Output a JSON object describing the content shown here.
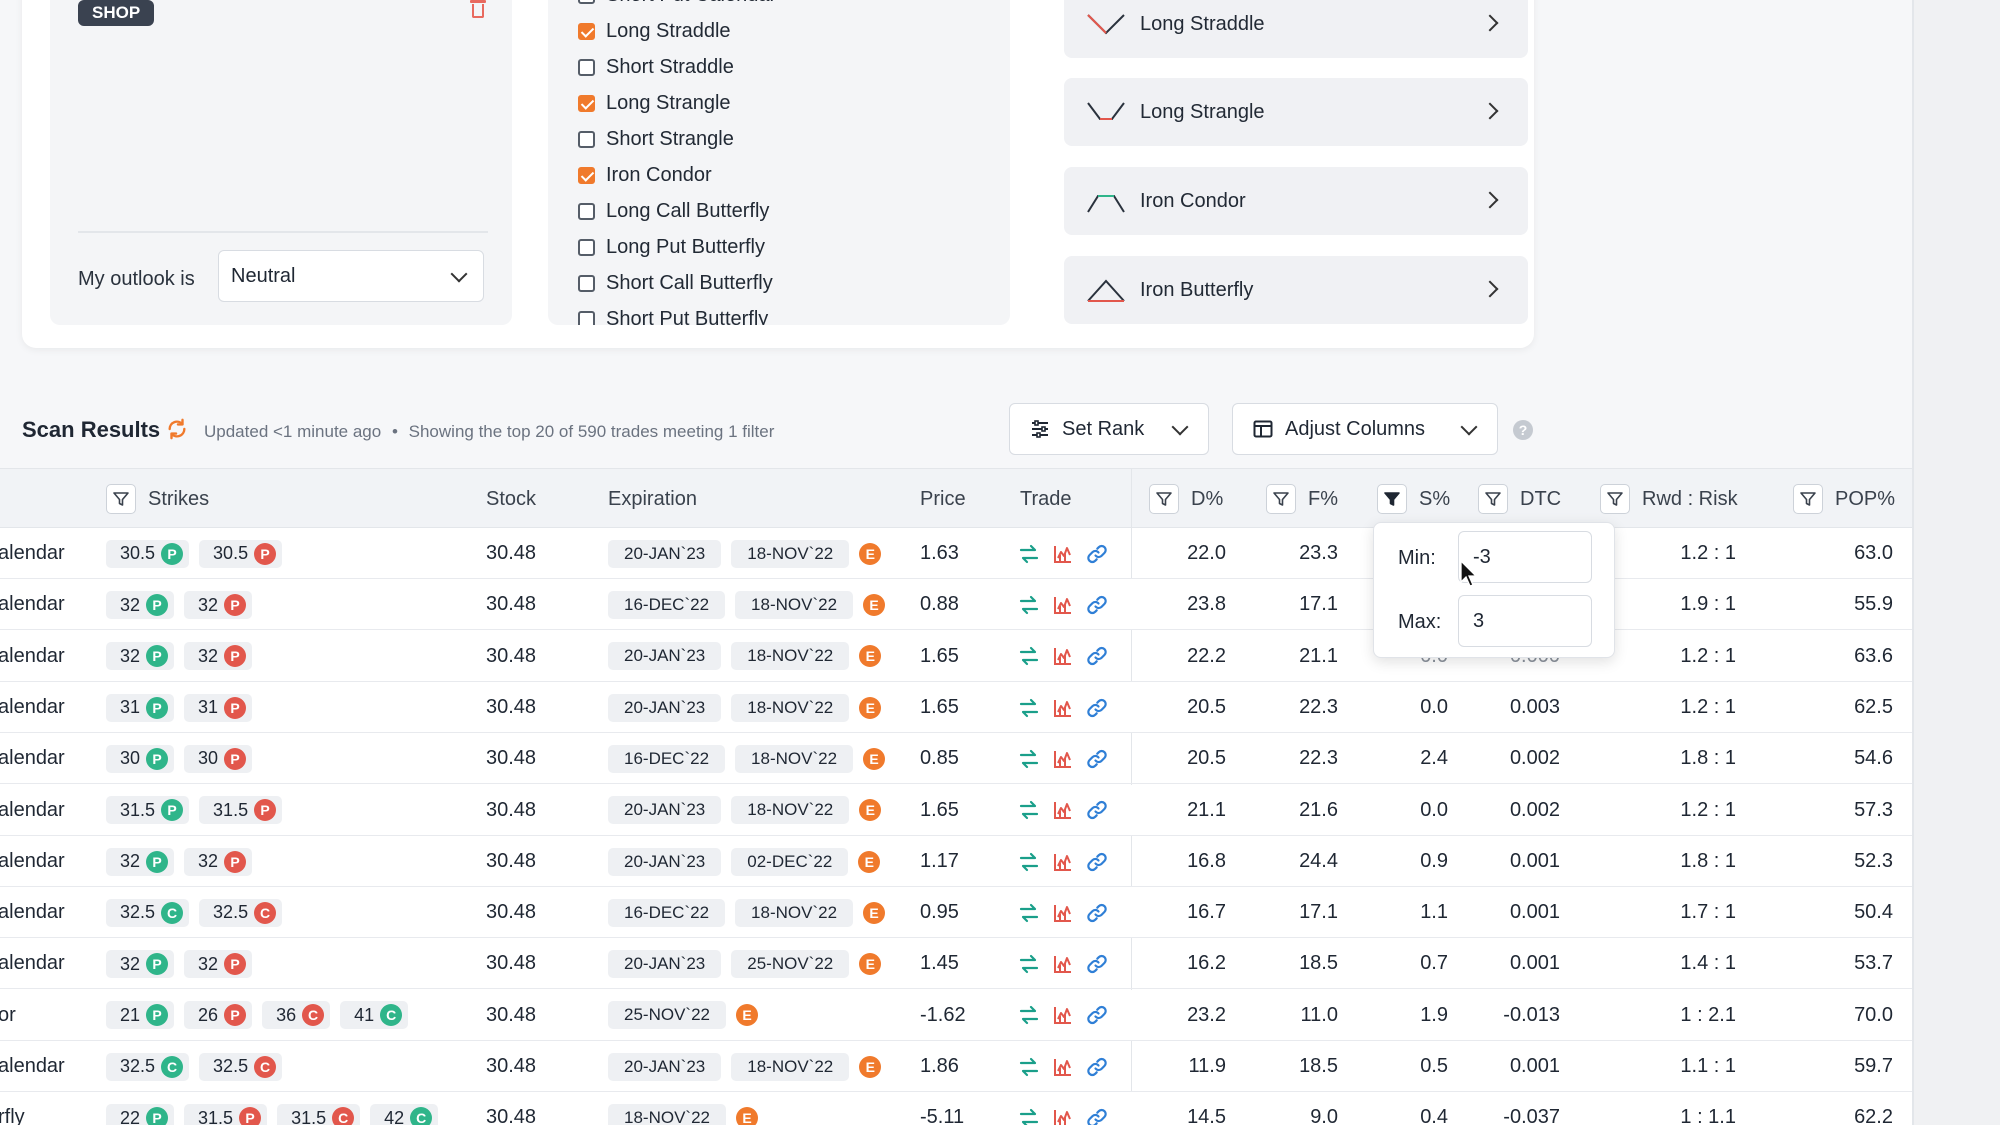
{
  "top_card": {
    "tag": "SHOP",
    "outlook_label": "My outlook is",
    "outlook_value": "Neutral",
    "strategies_list": [
      {
        "label": "Short Put Calendar",
        "checked": false
      },
      {
        "label": "Long Straddle",
        "checked": true
      },
      {
        "label": "Short Straddle",
        "checked": false
      },
      {
        "label": "Long Strangle",
        "checked": true
      },
      {
        "label": "Short Strangle",
        "checked": false
      },
      {
        "label": "Iron Condor",
        "checked": true
      },
      {
        "label": "Long Call Butterfly",
        "checked": false
      },
      {
        "label": "Long Put Butterfly",
        "checked": false
      },
      {
        "label": "Short Call Butterfly",
        "checked": false
      },
      {
        "label": "Short Put Butterfly",
        "checked": false
      }
    ],
    "strategy_cards": [
      {
        "label": "Long Straddle"
      },
      {
        "label": "Long Strangle"
      },
      {
        "label": "Iron Condor"
      },
      {
        "label": "Iron Butterfly"
      }
    ]
  },
  "scan": {
    "title": "Scan Results",
    "updated": "Updated <1 minute ago",
    "separator": "•",
    "showing": "Showing the top 20 of 590 trades meeting 1 filter",
    "set_rank": "Set Rank",
    "adjust_columns": "Adjust Columns",
    "help": "?"
  },
  "table": {
    "headers": {
      "strikes": "Strikes",
      "stock": "Stock",
      "expiration": "Expiration",
      "price": "Price",
      "trade": "Trade",
      "d": "D%",
      "f": "F%",
      "s": "S%",
      "dtc": "DTC",
      "rwd": "Rwd : Risk",
      "pop": "POP%"
    },
    "rows": [
      {
        "name": "alendar",
        "strikes": [
          [
            "30.5",
            "P"
          ],
          [
            "30.5",
            "P"
          ]
        ],
        "stock": "30.48",
        "exp": [
          "20-JAN`23",
          "18-NOV`22"
        ],
        "price": "1.63",
        "d": "22.0",
        "f": "23.3",
        "s": "",
        "dtc": "",
        "rwd": "1.2 : 1",
        "pop": "63.0"
      },
      {
        "name": "alendar",
        "strikes": [
          [
            "32",
            "P"
          ],
          [
            "32",
            "P"
          ]
        ],
        "stock": "30.48",
        "exp": [
          "16-DEC`22",
          "18-NOV`22"
        ],
        "price": "0.88",
        "d": "23.8",
        "f": "17.1",
        "s": "",
        "dtc": "",
        "rwd": "1.9 : 1",
        "pop": "55.9"
      },
      {
        "name": "alendar",
        "strikes": [
          [
            "32",
            "P"
          ],
          [
            "32",
            "P"
          ]
        ],
        "stock": "30.48",
        "exp": [
          "20-JAN`23",
          "18-NOV`22"
        ],
        "price": "1.65",
        "d": "22.2",
        "f": "21.1",
        "s": "",
        "dtc": "",
        "rwd": "1.2 : 1",
        "pop": "63.6"
      },
      {
        "name": "alendar",
        "strikes": [
          [
            "31",
            "P"
          ],
          [
            "31",
            "P"
          ]
        ],
        "stock": "30.48",
        "exp": [
          "20-JAN`23",
          "18-NOV`22"
        ],
        "price": "1.65",
        "d": "20.5",
        "f": "22.3",
        "s": "0.0",
        "dtc": "0.003",
        "rwd": "1.2 : 1",
        "pop": "62.5"
      },
      {
        "name": "alendar",
        "strikes": [
          [
            "30",
            "P"
          ],
          [
            "30",
            "P"
          ]
        ],
        "stock": "30.48",
        "exp": [
          "16-DEC`22",
          "18-NOV`22"
        ],
        "price": "0.85",
        "d": "20.5",
        "f": "22.3",
        "s": "2.4",
        "dtc": "0.002",
        "rwd": "1.8 : 1",
        "pop": "54.6"
      },
      {
        "name": "alendar",
        "strikes": [
          [
            "31.5",
            "P"
          ],
          [
            "31.5",
            "P"
          ]
        ],
        "stock": "30.48",
        "exp": [
          "20-JAN`23",
          "18-NOV`22"
        ],
        "price": "1.65",
        "d": "21.1",
        "f": "21.6",
        "s": "0.0",
        "dtc": "0.002",
        "rwd": "1.2 : 1",
        "pop": "57.3"
      },
      {
        "name": "alendar",
        "strikes": [
          [
            "32",
            "P"
          ],
          [
            "32",
            "P"
          ]
        ],
        "stock": "30.48",
        "exp": [
          "20-JAN`23",
          "02-DEC`22"
        ],
        "price": "1.17",
        "d": "16.8",
        "f": "24.4",
        "s": "0.9",
        "dtc": "0.001",
        "rwd": "1.8 : 1",
        "pop": "52.3"
      },
      {
        "name": "alendar",
        "strikes": [
          [
            "32.5",
            "C"
          ],
          [
            "32.5",
            "C"
          ]
        ],
        "stock": "30.48",
        "exp": [
          "16-DEC`22",
          "18-NOV`22"
        ],
        "price": "0.95",
        "d": "16.7",
        "f": "17.1",
        "s": "1.1",
        "dtc": "0.001",
        "rwd": "1.7 : 1",
        "pop": "50.4"
      },
      {
        "name": "alendar",
        "strikes": [
          [
            "32",
            "P"
          ],
          [
            "32",
            "P"
          ]
        ],
        "stock": "30.48",
        "exp": [
          "20-JAN`23",
          "25-NOV`22"
        ],
        "price": "1.45",
        "d": "16.2",
        "f": "18.5",
        "s": "0.7",
        "dtc": "0.001",
        "rwd": "1.4 : 1",
        "pop": "53.7"
      },
      {
        "name": "or",
        "strikes": [
          [
            "21",
            "P"
          ],
          [
            "26",
            "P"
          ],
          [
            "36",
            "C"
          ],
          [
            "41",
            "C"
          ]
        ],
        "stock": "30.48",
        "exp": [
          "25-NOV`22"
        ],
        "price": "-1.62",
        "d": "23.2",
        "f": "11.0",
        "s": "1.9",
        "dtc": "-0.013",
        "rwd": "1 : 2.1",
        "pop": "70.0"
      },
      {
        "name": "alendar",
        "strikes": [
          [
            "32.5",
            "C"
          ],
          [
            "32.5",
            "C"
          ]
        ],
        "stock": "30.48",
        "exp": [
          "20-JAN`23",
          "18-NOV`22"
        ],
        "price": "1.86",
        "d": "11.9",
        "f": "18.5",
        "s": "0.5",
        "dtc": "0.001",
        "rwd": "1.1 : 1",
        "pop": "59.7"
      },
      {
        "name": "rfly",
        "strikes": [
          [
            "22",
            "P"
          ],
          [
            "31.5",
            "P"
          ],
          [
            "31.5",
            "C"
          ],
          [
            "42",
            "C"
          ]
        ],
        "stock": "30.48",
        "exp": [
          "18-NOV`22"
        ],
        "price": "-5.11",
        "d": "14.5",
        "f": "9.0",
        "s": "0.4",
        "dtc": "-0.037",
        "rwd": "1 : 1.1",
        "pop": "62.2"
      }
    ],
    "row3_partial": {
      "s": "0.0",
      "dtc": "0.000"
    }
  },
  "popover": {
    "min_label": "Min:",
    "min_value": "-3",
    "max_label": "Max:",
    "max_value": "3"
  },
  "colors": {
    "accent_orange": "#f07a2c",
    "put_red": "#e2574c",
    "call_green": "#2fb58a",
    "icon_teal": "#1a9f8a",
    "icon_red": "#e2574c",
    "icon_blue": "#2f7fd6"
  }
}
